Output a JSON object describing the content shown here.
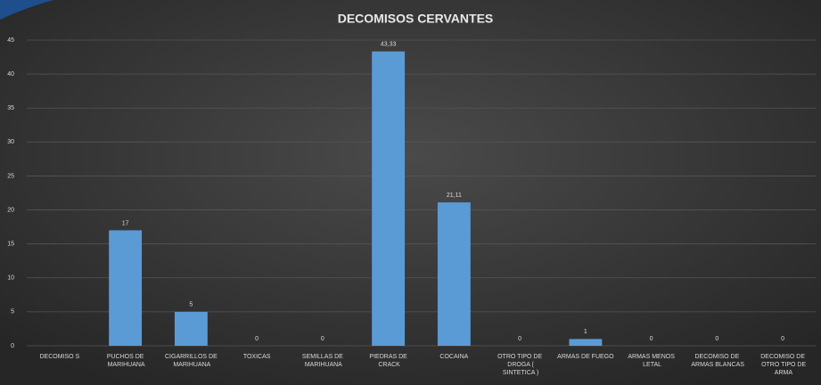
{
  "chart_data": {
    "type": "bar",
    "title": "DECOMISOS CERVANTES",
    "categories": [
      "DECOMISO S",
      "PUCHOS DE MARIHUANA",
      "CIGARRILLOS DE MARIHUANA",
      "TOXICAS",
      "SEMILLAS DE MARIHUANA",
      "PIEDRAS DE CRACK",
      "COCAINA",
      "OTRO TIPO DE DROGA ( SINTETICA )",
      "ARMAS DE FUEGO",
      "ARMAS MENOS LETAL",
      "DECOMISO DE ARMAS BLANCAS",
      "DECOMISO DE OTRO TIPO DE ARMA"
    ],
    "values": [
      null,
      17,
      5,
      0,
      0,
      43.33,
      21.11,
      0,
      1,
      0,
      0,
      0
    ],
    "value_labels": [
      null,
      "17",
      "5",
      "0",
      "0",
      "43,33",
      "21,11",
      "0",
      "1",
      "0",
      "0",
      "0"
    ],
    "color": "#5b9bd5",
    "ylim": [
      0,
      45
    ],
    "yticks": [
      0,
      5,
      10,
      15,
      20,
      25,
      30,
      35,
      40,
      45
    ],
    "grid": true
  }
}
